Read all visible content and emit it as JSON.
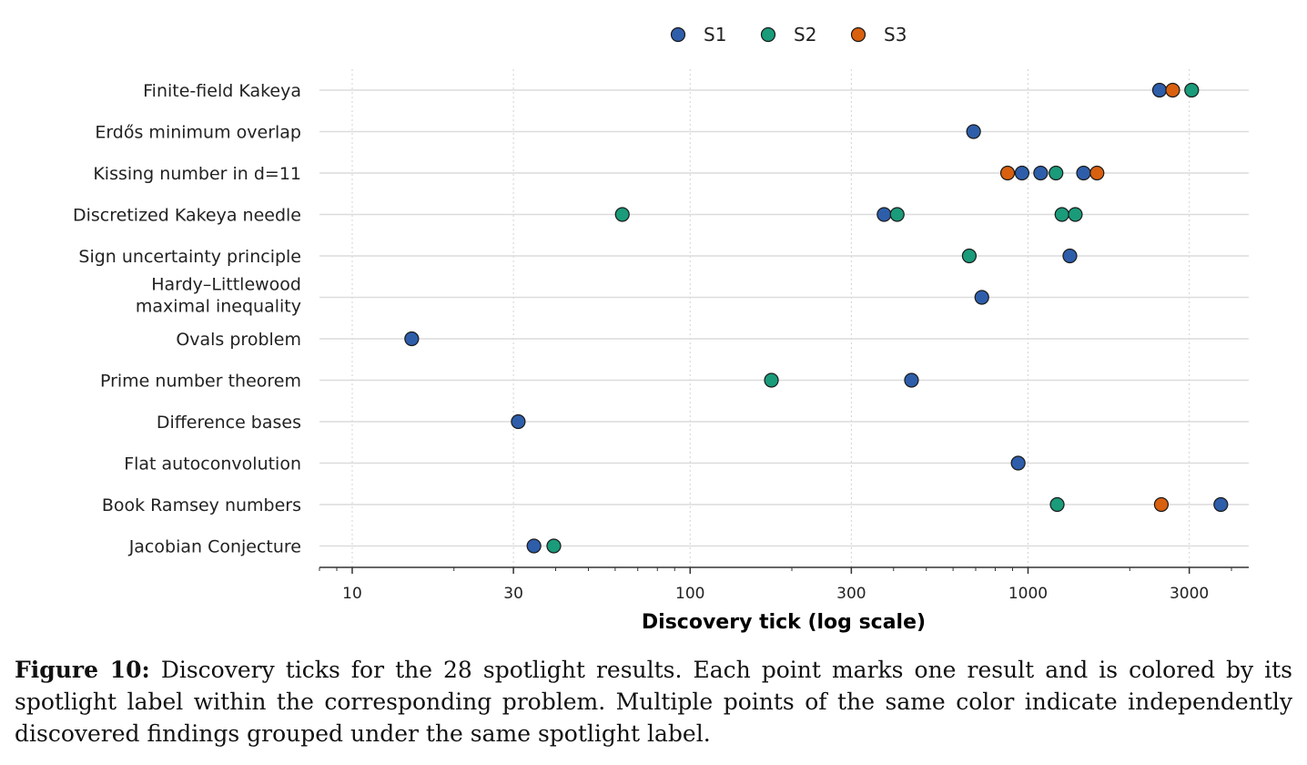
{
  "chart_data": {
    "type": "scatter",
    "xlabel": "Discovery tick (log scale)",
    "ylabel": "",
    "x_scale": "log",
    "xlim": [
      8,
      4500
    ],
    "x_ticks": [
      10,
      30,
      100,
      300,
      1000,
      3000
    ],
    "x_tick_labels": [
      "10",
      "30",
      "100",
      "300",
      "1000",
      "3000"
    ],
    "grid": "x dotted, y solid",
    "legend_placement": "top-center",
    "series": [
      {
        "name": "S1",
        "color": "#2E5EAA"
      },
      {
        "name": "S2",
        "color": "#1A9B7A"
      },
      {
        "name": "S3",
        "color": "#D9600F"
      }
    ],
    "categories": [
      {
        "label": "Finite-field Kakeya",
        "points": [
          {
            "x": 2450,
            "s": "S1"
          },
          {
            "x": 2680,
            "s": "S3"
          },
          {
            "x": 3050,
            "s": "S2"
          }
        ]
      },
      {
        "label": "Erdős minimum overlap",
        "points": [
          {
            "x": 690,
            "s": "S1"
          }
        ]
      },
      {
        "label": "Kissing number in d=11",
        "points": [
          {
            "x": 870,
            "s": "S3"
          },
          {
            "x": 960,
            "s": "S1"
          },
          {
            "x": 1090,
            "s": "S1"
          },
          {
            "x": 1210,
            "s": "S2"
          },
          {
            "x": 1460,
            "s": "S1"
          },
          {
            "x": 1600,
            "s": "S3"
          }
        ]
      },
      {
        "label": "Discretized Kakeya needle",
        "points": [
          {
            "x": 63,
            "s": "S2"
          },
          {
            "x": 375,
            "s": "S1"
          },
          {
            "x": 410,
            "s": "S2"
          },
          {
            "x": 1260,
            "s": "S2"
          },
          {
            "x": 1380,
            "s": "S2"
          }
        ]
      },
      {
        "label": "Sign uncertainty principle",
        "points": [
          {
            "x": 670,
            "s": "S2"
          },
          {
            "x": 1330,
            "s": "S1"
          }
        ]
      },
      {
        "label": "Hardy–Littlewood\nmaximal inequality",
        "points": [
          {
            "x": 730,
            "s": "S1"
          }
        ]
      },
      {
        "label": "Ovals problem",
        "points": [
          {
            "x": 15,
            "s": "S1"
          }
        ]
      },
      {
        "label": "Prime number theorem",
        "points": [
          {
            "x": 174,
            "s": "S2"
          },
          {
            "x": 452,
            "s": "S1"
          }
        ]
      },
      {
        "label": "Difference bases",
        "points": [
          {
            "x": 31,
            "s": "S1"
          }
        ]
      },
      {
        "label": "Flat autoconvolution",
        "points": [
          {
            "x": 935,
            "s": "S1"
          }
        ]
      },
      {
        "label": "Book Ramsey numbers",
        "points": [
          {
            "x": 1220,
            "s": "S2"
          },
          {
            "x": 2480,
            "s": "S3"
          },
          {
            "x": 3720,
            "s": "S1"
          }
        ]
      },
      {
        "label": "Jacobian Conjecture",
        "points": [
          {
            "x": 34.5,
            "s": "S1"
          },
          {
            "x": 39.5,
            "s": "S2"
          }
        ]
      }
    ]
  },
  "caption": {
    "label": "Figure 10:",
    "text": "Discovery ticks for the 28 spotlight results. Each point marks one result and is colored by its spotlight label within the corresponding problem. Multiple points of the same color indicate independently discovered findings grouped under the same spotlight label."
  }
}
